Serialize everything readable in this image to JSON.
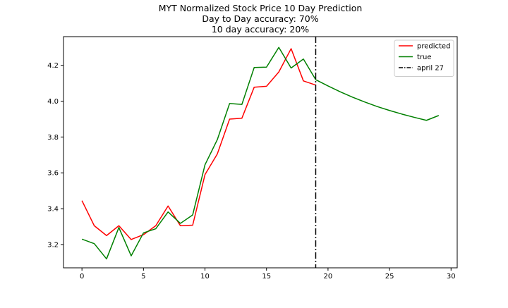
{
  "chart_data": {
    "type": "line",
    "title_lines": [
      "MYT Normalized Stock Price 10 Day Prediction",
      "Day to Day accuracy: 70%",
      "10 day accuracy: 20%"
    ],
    "xlabel": "",
    "ylabel": "",
    "xlim": [
      -1.5,
      30.5
    ],
    "ylim": [
      3.07,
      4.36
    ],
    "x_ticks": [
      0,
      5,
      10,
      15,
      20,
      25,
      30
    ],
    "y_ticks": [
      3.2,
      3.4,
      3.6,
      3.8,
      4.0,
      4.2
    ],
    "y_tick_labels": [
      "3.2",
      "3.4",
      "3.6",
      "3.8",
      "4.0",
      "4.2"
    ],
    "grid": false,
    "legend_position": "top-right",
    "series": [
      {
        "name": "predicted",
        "color": "#ff0000",
        "x": [
          0,
          1,
          2,
          3,
          4,
          5,
          6,
          7,
          8,
          9,
          10,
          11,
          12,
          13,
          14,
          15,
          16,
          17,
          18,
          19
        ],
        "values": [
          3.445,
          3.305,
          3.25,
          3.305,
          3.228,
          3.255,
          3.305,
          3.415,
          3.305,
          3.308,
          3.59,
          3.705,
          3.9,
          3.905,
          4.078,
          4.083,
          4.163,
          4.293,
          4.113,
          4.09
        ]
      },
      {
        "name": "true",
        "color": "#008000",
        "x": [
          0,
          1,
          2,
          3,
          4,
          5,
          6,
          7,
          8,
          9,
          10,
          11,
          12,
          13,
          14,
          15,
          16,
          17,
          18,
          19,
          20,
          21,
          22,
          23,
          24,
          25,
          26,
          27,
          28,
          29
        ],
        "values": [
          3.23,
          3.205,
          3.12,
          3.295,
          3.137,
          3.265,
          3.288,
          3.382,
          3.318,
          3.365,
          3.645,
          3.785,
          3.987,
          3.982,
          4.188,
          4.19,
          4.3,
          4.185,
          4.235,
          4.12,
          4.085,
          4.052,
          4.022,
          3.995,
          3.97,
          3.948,
          3.928,
          3.91,
          3.893,
          3.92
        ]
      }
    ],
    "vertical_lines": [
      {
        "name": "april 27",
        "x": 19,
        "color": "#000000",
        "style": "dashdot"
      }
    ]
  }
}
